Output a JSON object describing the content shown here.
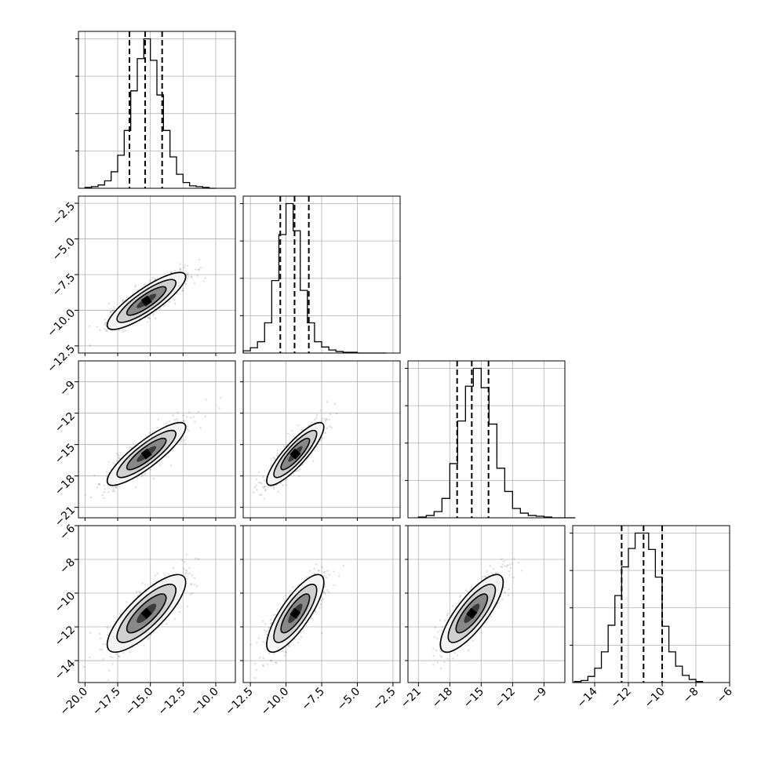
{
  "chart_data": {
    "type": "corner",
    "parameters": [
      "",
      "",
      "",
      ""
    ],
    "ranges": [
      [
        -20.5,
        -8.5
      ],
      [
        -13,
        -2
      ],
      [
        -22,
        -7
      ],
      [
        -15.3,
        -6
      ]
    ],
    "ticks": [
      [
        {
          "value": -20,
          "label": "−20.0"
        },
        {
          "value": -17.5,
          "label": "−17.5"
        },
        {
          "value": -15,
          "label": "−15.0"
        },
        {
          "value": -12.5,
          "label": "−12.5"
        },
        {
          "value": -10,
          "label": "−10.0"
        }
      ],
      [
        {
          "value": -12.5,
          "label": "−12.5"
        },
        {
          "value": -10,
          "label": "−10.0"
        },
        {
          "value": -7.5,
          "label": "−7.5"
        },
        {
          "value": -5,
          "label": "−5.0"
        },
        {
          "value": -2.5,
          "label": "−2.5"
        }
      ],
      [
        {
          "value": -21,
          "label": "−21"
        },
        {
          "value": -18,
          "label": "−18"
        },
        {
          "value": -15,
          "label": "−15"
        },
        {
          "value": -12,
          "label": "−12"
        },
        {
          "value": -9,
          "label": "−9"
        }
      ],
      [
        {
          "value": -14,
          "label": "−14"
        },
        {
          "value": -12,
          "label": "−12"
        },
        {
          "value": -10,
          "label": "−10"
        },
        {
          "value": -8,
          "label": "−8"
        },
        {
          "value": -6,
          "label": "−6"
        }
      ]
    ],
    "quantiles": [
      [
        -16.6,
        -15.4,
        -14.1
      ],
      [
        -10.4,
        -9.4,
        -8.4
      ],
      [
        -17.3,
        -15.9,
        -14.3
      ],
      [
        -12.4,
        -11.1,
        -10.0
      ]
    ],
    "marginals": [
      {
        "bin_edges": [
          -20,
          -19.5,
          -19,
          -18.5,
          -18,
          -17.5,
          -17,
          -16.5,
          -16,
          -15.5,
          -15,
          -14.5,
          -14,
          -13.5,
          -13,
          -12.5,
          -12,
          -11.5,
          -11,
          -10.5,
          -10
        ],
        "counts": [
          1,
          2,
          4,
          9,
          20,
          40,
          70,
          118,
          157,
          181,
          155,
          113,
          70,
          38,
          17,
          7,
          3,
          2,
          1,
          0
        ]
      },
      {
        "bin_edges": [
          -13,
          -12.5,
          -12,
          -11.5,
          -11,
          -10.5,
          -10,
          -9.5,
          -9,
          -8.5,
          -8,
          -7.5,
          -7,
          -6.5,
          -6,
          -5.5,
          -5,
          -4.5,
          -4,
          -3.5,
          -3
        ],
        "counts": [
          3,
          7,
          15,
          40,
          96,
          157,
          198,
          162,
          83,
          40,
          15,
          8,
          4,
          2,
          1,
          1,
          0,
          0,
          0,
          0
        ]
      },
      {
        "bin_edges": [
          -21,
          -20.25,
          -19.5,
          -18.75,
          -18,
          -17.25,
          -16.5,
          -15.75,
          -15,
          -14.25,
          -13.5,
          -12.75,
          -12,
          -11.25,
          -10.5,
          -9.75,
          -9,
          -8.25,
          -7.5,
          -6.75,
          -6
        ],
        "counts": [
          1,
          3,
          8,
          25,
          70,
          125,
          170,
          193,
          168,
          121,
          64,
          34,
          12,
          6,
          3,
          2,
          1,
          0,
          0,
          0
        ]
      },
      {
        "bin_edges": [
          -15.2,
          -14.8,
          -14.4,
          -14,
          -13.6,
          -13.2,
          -12.8,
          -12.4,
          -12,
          -11.6,
          -11.2,
          -10.8,
          -10.4,
          -10,
          -9.6,
          -9.2,
          -8.8,
          -8.4,
          -8,
          -7.6
        ],
        "counts": [
          1,
          2,
          6,
          14,
          30,
          56,
          85,
          113,
          131,
          146,
          146,
          130,
          103,
          55,
          30,
          16,
          7,
          3,
          1
        ]
      }
    ],
    "joint": [
      {
        "x_param": 0,
        "y_param": 1,
        "mean": [
          -15.3,
          -9.35
        ],
        "std": [
          1.5,
          1.0
        ],
        "corr": 0.85
      },
      {
        "x_param": 0,
        "y_param": 2,
        "mean": [
          -15.3,
          -15.9
        ],
        "std": [
          1.5,
          1.5
        ],
        "corr": 0.86
      },
      {
        "x_param": 1,
        "y_param": 2,
        "mean": [
          -9.35,
          -15.9
        ],
        "std": [
          1.0,
          1.5
        ],
        "corr": 0.86
      },
      {
        "x_param": 0,
        "y_param": 3,
        "mean": [
          -15.3,
          -11.2
        ],
        "std": [
          1.5,
          1.15
        ],
        "corr": 0.8
      },
      {
        "x_param": 1,
        "y_param": 3,
        "mean": [
          -9.35,
          -11.2
        ],
        "std": [
          1.0,
          1.15
        ],
        "corr": 0.8
      },
      {
        "x_param": 2,
        "y_param": 3,
        "mean": [
          -15.9,
          -11.2
        ],
        "std": [
          1.5,
          1.15
        ],
        "corr": 0.8
      }
    ],
    "contour_levels_sigma": [
      0.5,
      1.0,
      1.5,
      2.0
    ],
    "grid": true,
    "shading_color": "#000000"
  }
}
